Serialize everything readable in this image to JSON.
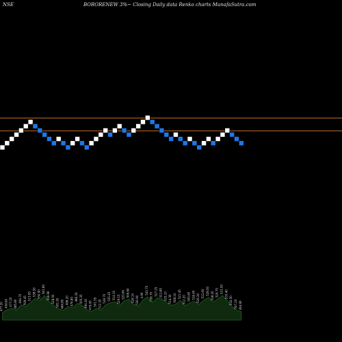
{
  "header": {
    "exchange": "NSE",
    "title": "BORORENEW 3%~ Closing Daily data Renko charts MunafaSutra.com"
  },
  "colors": {
    "background": "#000000",
    "up_brick": "#ffffff",
    "down_brick": "#1f77e6",
    "level_line": "#c8702a",
    "volume_fill": "#0f2a0f",
    "volume_stroke": "#1f5f1f",
    "volume_label": "#d9d9d9"
  },
  "chart_data": {
    "type": "renko",
    "brick_directions": [
      "up",
      "up",
      "up",
      "up",
      "up",
      "up",
      "up",
      "down",
      "down",
      "down",
      "down",
      "down",
      "up",
      "down",
      "down",
      "up",
      "up",
      "down",
      "down",
      "up",
      "up",
      "up",
      "up",
      "down",
      "up",
      "up",
      "down",
      "down",
      "up",
      "up",
      "up",
      "up",
      "down",
      "down",
      "down",
      "down",
      "down",
      "up",
      "down",
      "down",
      "up",
      "down",
      "down",
      "up",
      "up",
      "down",
      "up",
      "up",
      "up",
      "down",
      "down",
      "down"
    ],
    "start_level": 0,
    "horizontal_levels": [
      7,
      4
    ],
    "volume_levels": [
      0.3,
      0.42,
      0.48,
      0.4,
      0.62,
      0.55,
      0.72,
      0.88,
      0.8,
      1.0,
      0.74,
      0.6,
      0.45,
      0.4,
      0.55,
      0.5,
      0.68,
      0.6,
      0.42,
      0.35,
      0.48,
      0.4,
      0.62,
      0.7,
      0.75,
      0.6,
      0.78,
      0.85,
      0.64,
      0.56,
      0.82,
      0.95,
      0.7,
      0.9,
      0.86,
      0.72,
      0.6,
      0.65,
      0.8,
      0.58,
      0.7,
      0.76,
      0.64,
      0.82,
      0.92,
      0.74,
      0.86,
      1.0,
      0.8,
      0.55,
      0.4,
      0.35
    ],
    "volume_labels": [
      "477.20",
      "458.60",
      "477.20",
      "485.80",
      "494.70",
      "509.45",
      "513.95",
      "538.50",
      "550.90",
      "561.80",
      "536.90",
      "528.50",
      "505.30",
      "484.80",
      "498.20",
      "476.80",
      "486.30",
      "505.35",
      "490.30",
      "479.00",
      "501.55",
      "512.30",
      "528.70",
      "535.45",
      "514.10",
      "529.15",
      "520.60",
      "509.60",
      "528.10",
      "536.90",
      "4.90",
      "543.75",
      "536.70",
      "527.25",
      "513.80",
      "525.10",
      "514.30",
      "508.10",
      "521.45",
      "512.20",
      "505.60",
      "516.40",
      "526.30",
      "512.60",
      "528.50",
      "538.20",
      "524.70",
      "531.50",
      "533.40",
      "516.50",
      "507.20",
      "494.90"
    ]
  }
}
